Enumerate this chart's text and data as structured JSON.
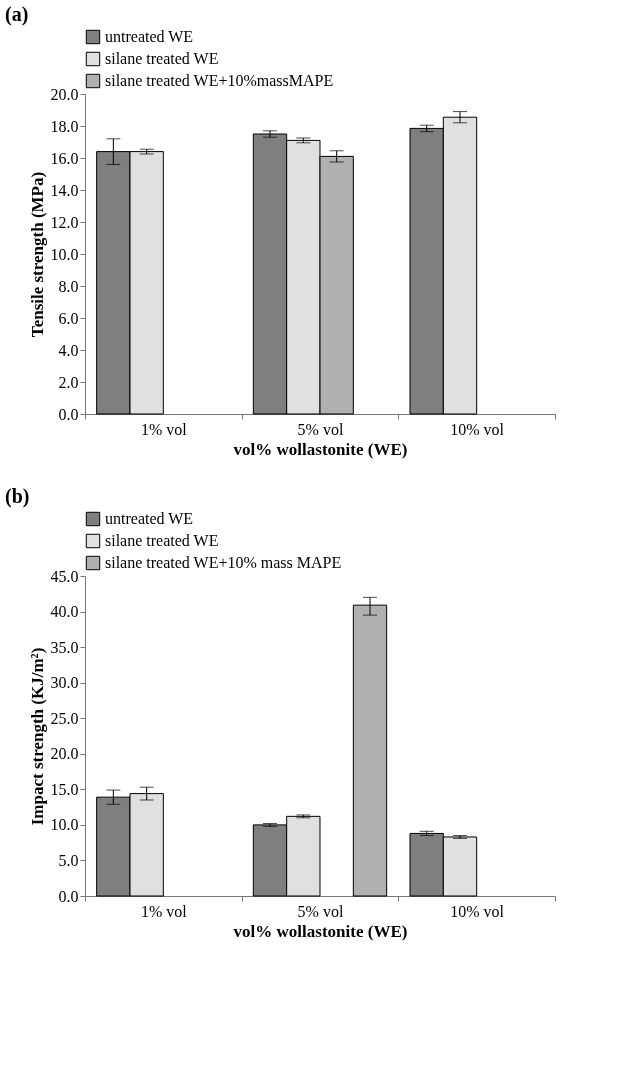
{
  "chart_data": [
    {
      "type": "bar",
      "title": "(a)",
      "xlabel": "vol% wollastonite (WE)",
      "ylabel": "Tensile strength (MPa)",
      "categories": [
        "1% vol",
        "5% vol",
        "10% vol"
      ],
      "series": [
        {
          "name": "untreated WE",
          "color": "#7f7f7f",
          "values": [
            16.4,
            17.5,
            17.85
          ],
          "errors": [
            0.8,
            0.2,
            0.2
          ]
        },
        {
          "name": "silane treated WE",
          "color": "#e0e0e0",
          "values": [
            16.4,
            17.1,
            18.55
          ],
          "errors": [
            0.15,
            0.15,
            0.35
          ]
        },
        {
          "name": "silane treated WE+10%massMAPE",
          "color": "#b0b0b0",
          "values": [
            null,
            16.1,
            null
          ],
          "errors": [
            null,
            0.35,
            null
          ]
        }
      ],
      "ylim": [
        0,
        20
      ],
      "yticks": [
        {
          "value": 0,
          "label": "0.0"
        },
        {
          "value": 2,
          "label": "2.0"
        },
        {
          "value": 4,
          "label": "4.0"
        },
        {
          "value": 6,
          "label": "6.0"
        },
        {
          "value": 8,
          "label": "8.0"
        },
        {
          "value": 10,
          "label": "10.0"
        },
        {
          "value": 12,
          "label": "12.0"
        },
        {
          "value": 14,
          "label": "14.0"
        },
        {
          "value": 16,
          "label": "16.0"
        },
        {
          "value": 18,
          "label": "18.0"
        },
        {
          "value": 20,
          "label": "20.0"
        }
      ],
      "legend": "top",
      "grid": false
    },
    {
      "type": "bar",
      "title": "(b)",
      "xlabel": "vol% wollastonite (WE)",
      "ylabel": "Impact strength (KJ/m²)",
      "categories": [
        "1% vol",
        "5% vol",
        "10% vol"
      ],
      "series": [
        {
          "name": "untreated WE",
          "color": "#7f7f7f",
          "values": [
            13.9,
            10.0,
            8.8
          ],
          "errors": [
            1.0,
            0.2,
            0.3
          ]
        },
        {
          "name": "silane treated WE",
          "color": "#e0e0e0",
          "values": [
            14.4,
            11.2,
            8.3
          ],
          "errors": [
            0.9,
            0.2,
            0.2
          ]
        },
        {
          "name": "silane treated WE+10% mass MAPE",
          "color": "#b0b0b0",
          "values": [
            null,
            40.9,
            null
          ],
          "errors": [
            null,
            [
              39.5,
              42.0
            ],
            null
          ]
        }
      ],
      "ylim": [
        0,
        45
      ],
      "yticks": [
        {
          "value": 0,
          "label": "0.0"
        },
        {
          "value": 5,
          "label": "5.0"
        },
        {
          "value": 10,
          "label": "10.0"
        },
        {
          "value": 15,
          "label": "15.0"
        },
        {
          "value": 20,
          "label": "20.0"
        },
        {
          "value": 25,
          "label": "25.0"
        },
        {
          "value": 30,
          "label": "30.0"
        },
        {
          "value": 35,
          "label": "35.0"
        },
        {
          "value": 40,
          "label": "40.0"
        },
        {
          "value": 45,
          "label": "45.0"
        }
      ],
      "legend": "top",
      "grid": false
    }
  ]
}
